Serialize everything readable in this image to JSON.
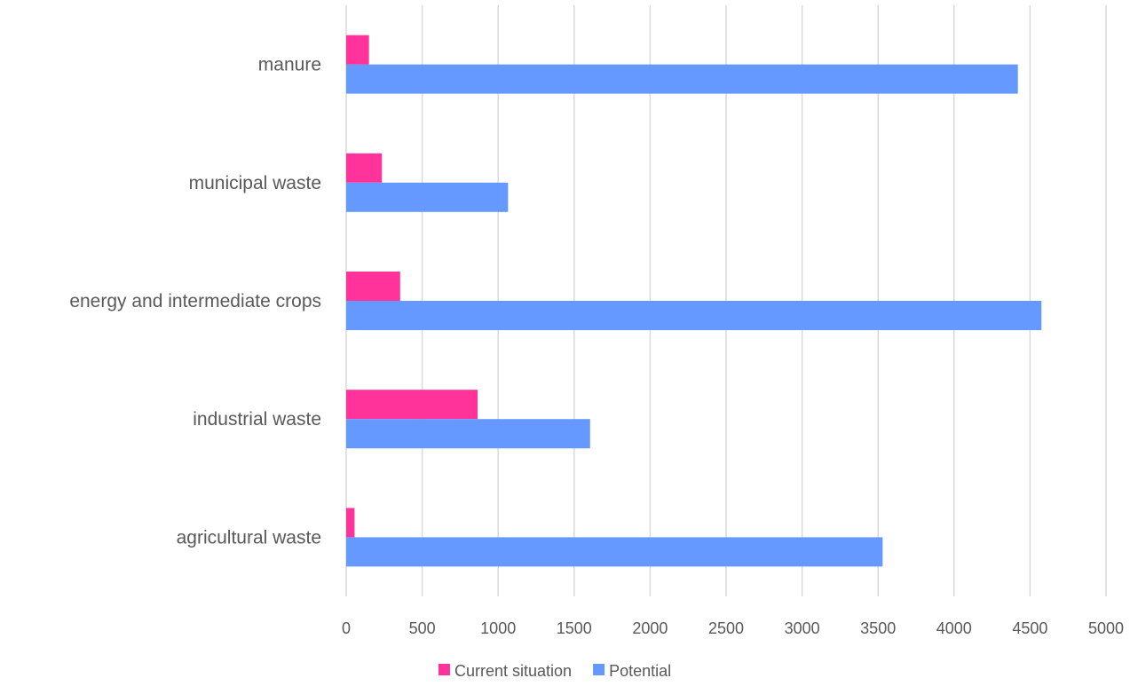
{
  "chart_data": {
    "type": "bar",
    "orientation": "horizontal",
    "categories": [
      "manure",
      "municipal waste",
      "energy and intermediate crops",
      "industrial waste",
      "agricultural waste"
    ],
    "series": [
      {
        "name": "Current situation",
        "color": "#ff3399",
        "values": [
          150,
          235,
          355,
          865,
          55
        ]
      },
      {
        "name": "Potential",
        "color": "#6699ff",
        "values": [
          4420,
          1065,
          4575,
          1605,
          3530
        ]
      }
    ],
    "xlim": [
      0,
      5000
    ],
    "xticks": [
      "0",
      "500",
      "1000",
      "1500",
      "2000",
      "2500",
      "3000",
      "3500",
      "4000",
      "4500",
      "5000"
    ],
    "grid": "vertical",
    "legend_position": "bottom",
    "title": "",
    "xlabel": "",
    "ylabel": ""
  }
}
